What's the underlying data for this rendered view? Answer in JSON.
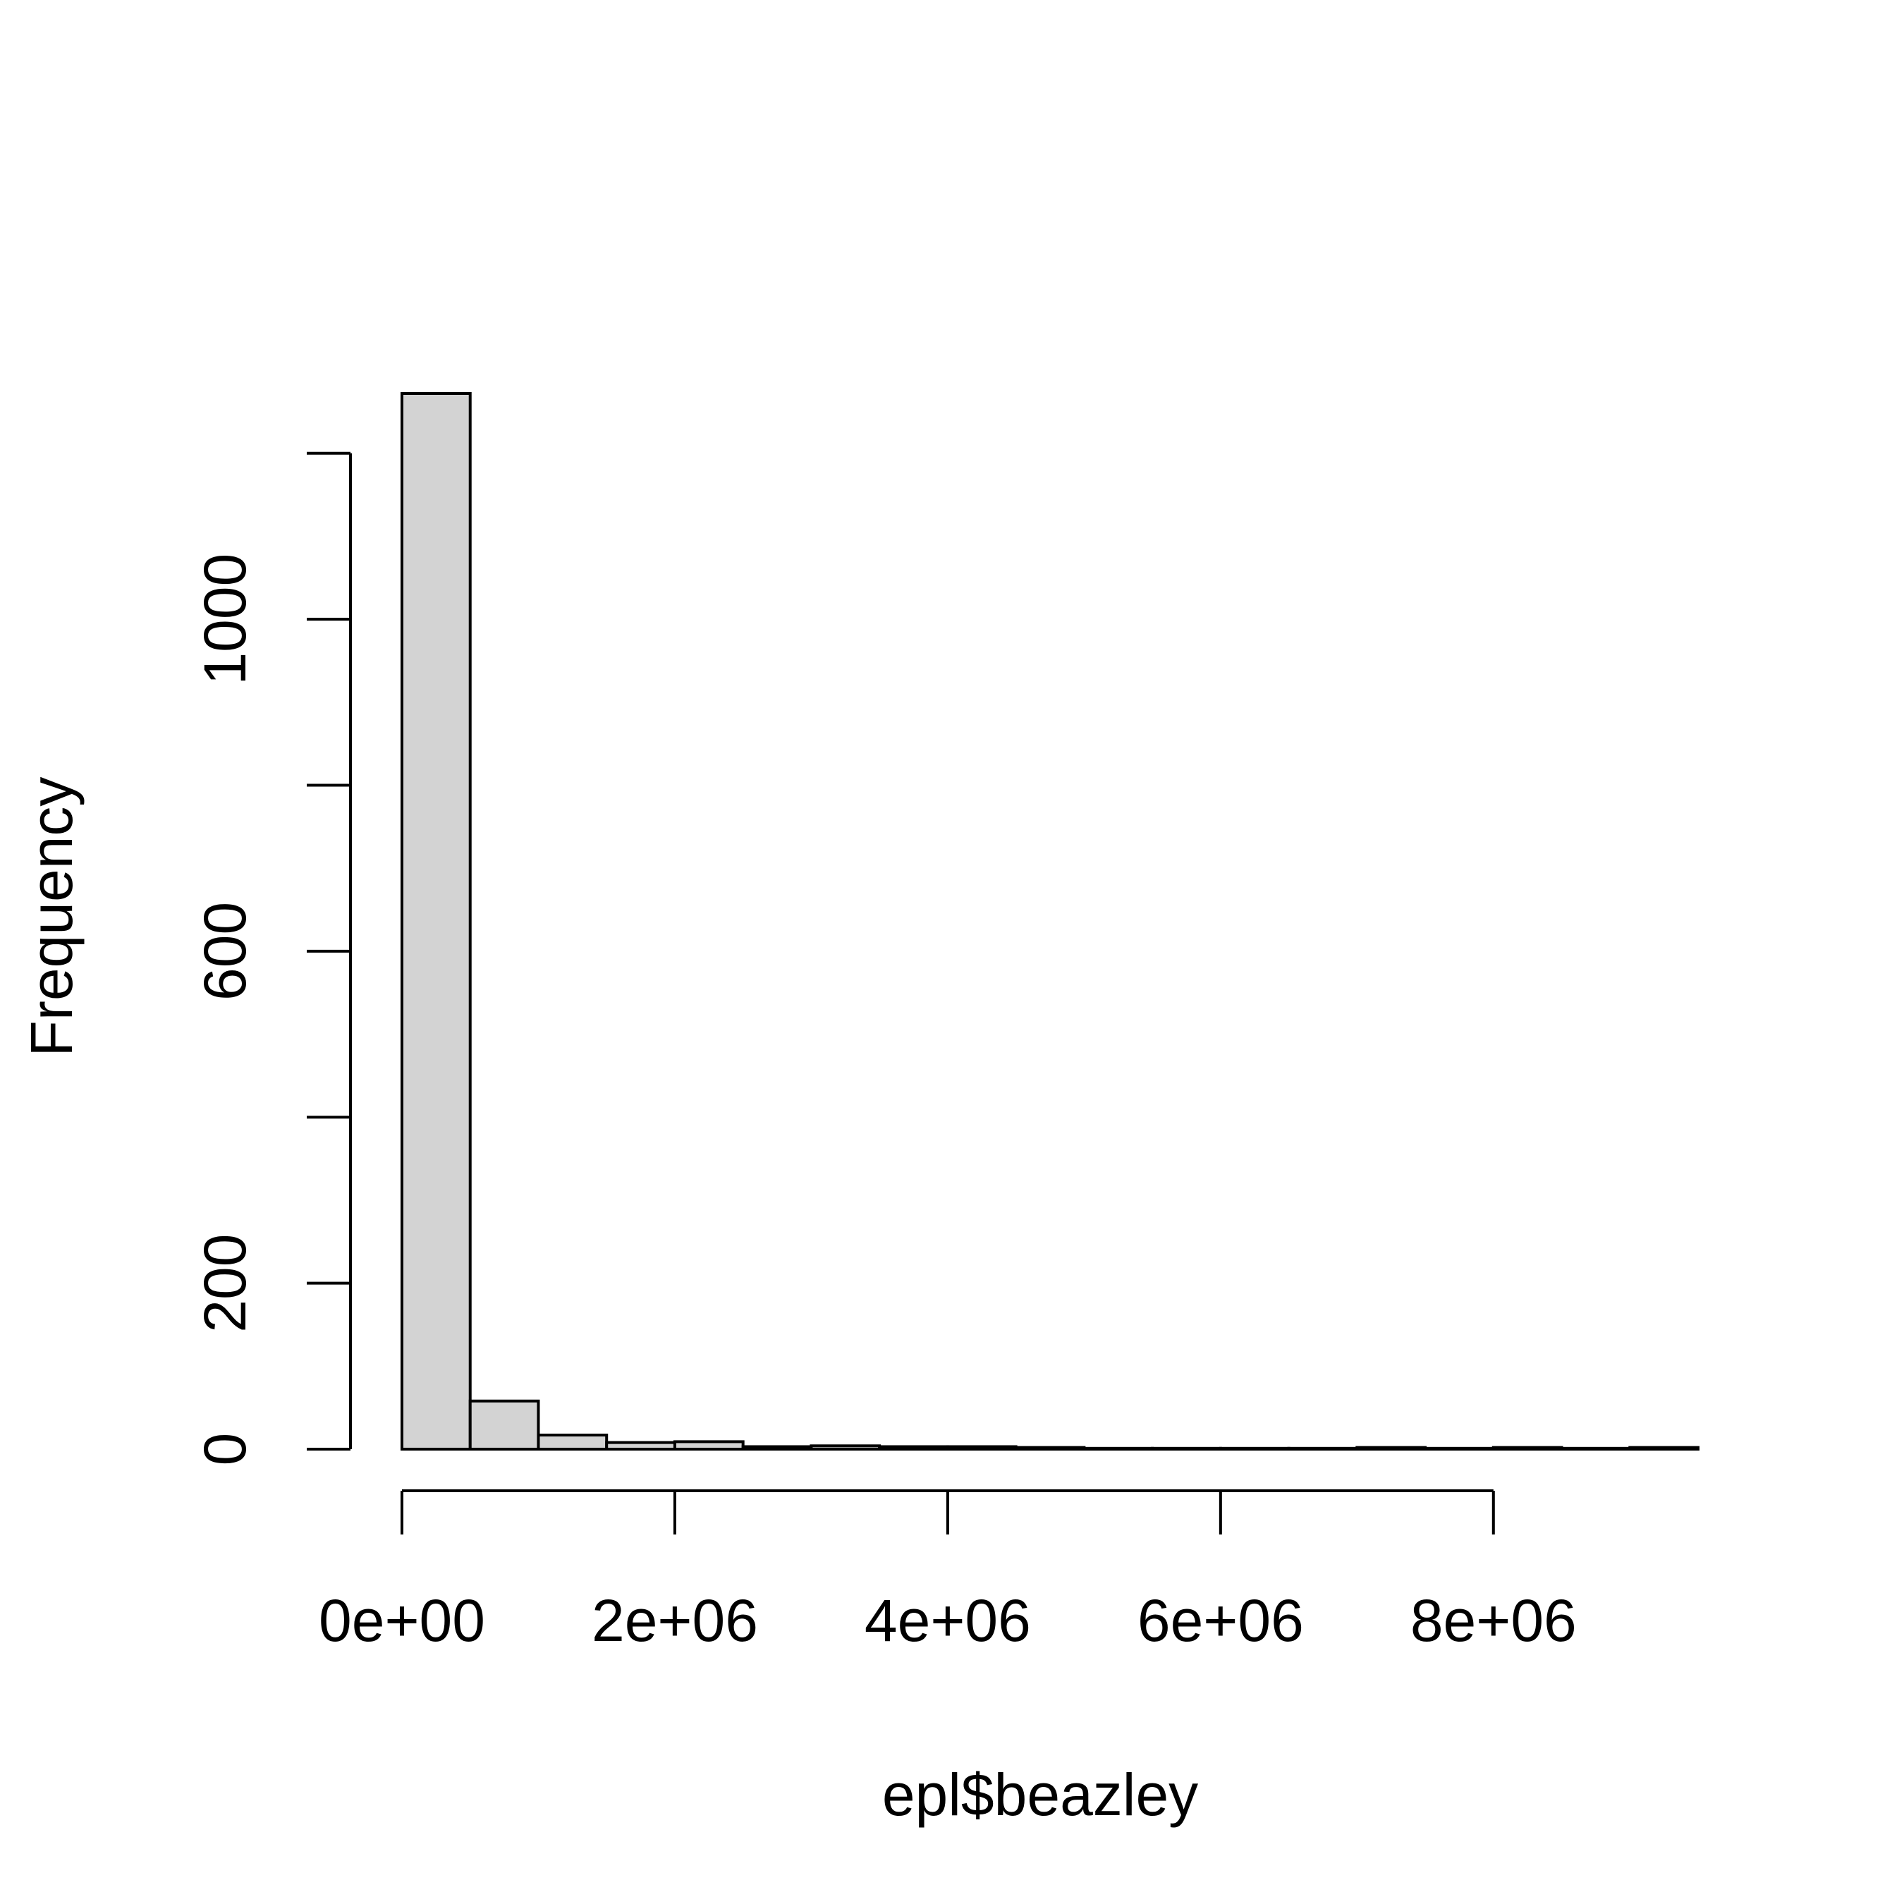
{
  "chart_data": {
    "type": "bar",
    "title": "",
    "xlabel": "epl$beazley",
    "ylabel": "Frequency",
    "bin_width": 500000,
    "bins": [
      {
        "x0": 0,
        "x1": 500000,
        "count": 1272
      },
      {
        "x0": 500000,
        "x1": 1000000,
        "count": 58
      },
      {
        "x0": 1000000,
        "x1": 1500000,
        "count": 17
      },
      {
        "x0": 1500000,
        "x1": 2000000,
        "count": 8
      },
      {
        "x0": 2000000,
        "x1": 2500000,
        "count": 9
      },
      {
        "x0": 2500000,
        "x1": 3000000,
        "count": 3
      },
      {
        "x0": 3000000,
        "x1": 3500000,
        "count": 4
      },
      {
        "x0": 3500000,
        "x1": 4000000,
        "count": 3
      },
      {
        "x0": 4000000,
        "x1": 4500000,
        "count": 3
      },
      {
        "x0": 4500000,
        "x1": 5000000,
        "count": 2
      },
      {
        "x0": 5000000,
        "x1": 5500000,
        "count": 1
      },
      {
        "x0": 5500000,
        "x1": 6000000,
        "count": 1
      },
      {
        "x0": 6000000,
        "x1": 6500000,
        "count": 1
      },
      {
        "x0": 6500000,
        "x1": 7000000,
        "count": 1
      },
      {
        "x0": 7000000,
        "x1": 7500000,
        "count": 2
      },
      {
        "x0": 7500000,
        "x1": 8000000,
        "count": 1
      },
      {
        "x0": 8000000,
        "x1": 8500000,
        "count": 2
      },
      {
        "x0": 8500000,
        "x1": 9000000,
        "count": 1
      },
      {
        "x0": 9000000,
        "x1": 9500000,
        "count": 2
      }
    ],
    "xlim": [
      0,
      9500000
    ],
    "ylim": [
      0,
      1272
    ],
    "x_ticks": [
      0,
      2000000,
      4000000,
      6000000,
      8000000
    ],
    "x_tick_labels": [
      "0e+00",
      "2e+06",
      "4e+06",
      "6e+06",
      "8e+06"
    ],
    "y_ticks": [
      0,
      200,
      400,
      600,
      800,
      1000,
      1200
    ],
    "y_tick_labels": [
      "0",
      "200",
      "",
      "600",
      "",
      "1000",
      ""
    ],
    "bar_fill": "#d3d3d3",
    "bar_stroke": "#000000",
    "grid": false,
    "legend": "none"
  }
}
